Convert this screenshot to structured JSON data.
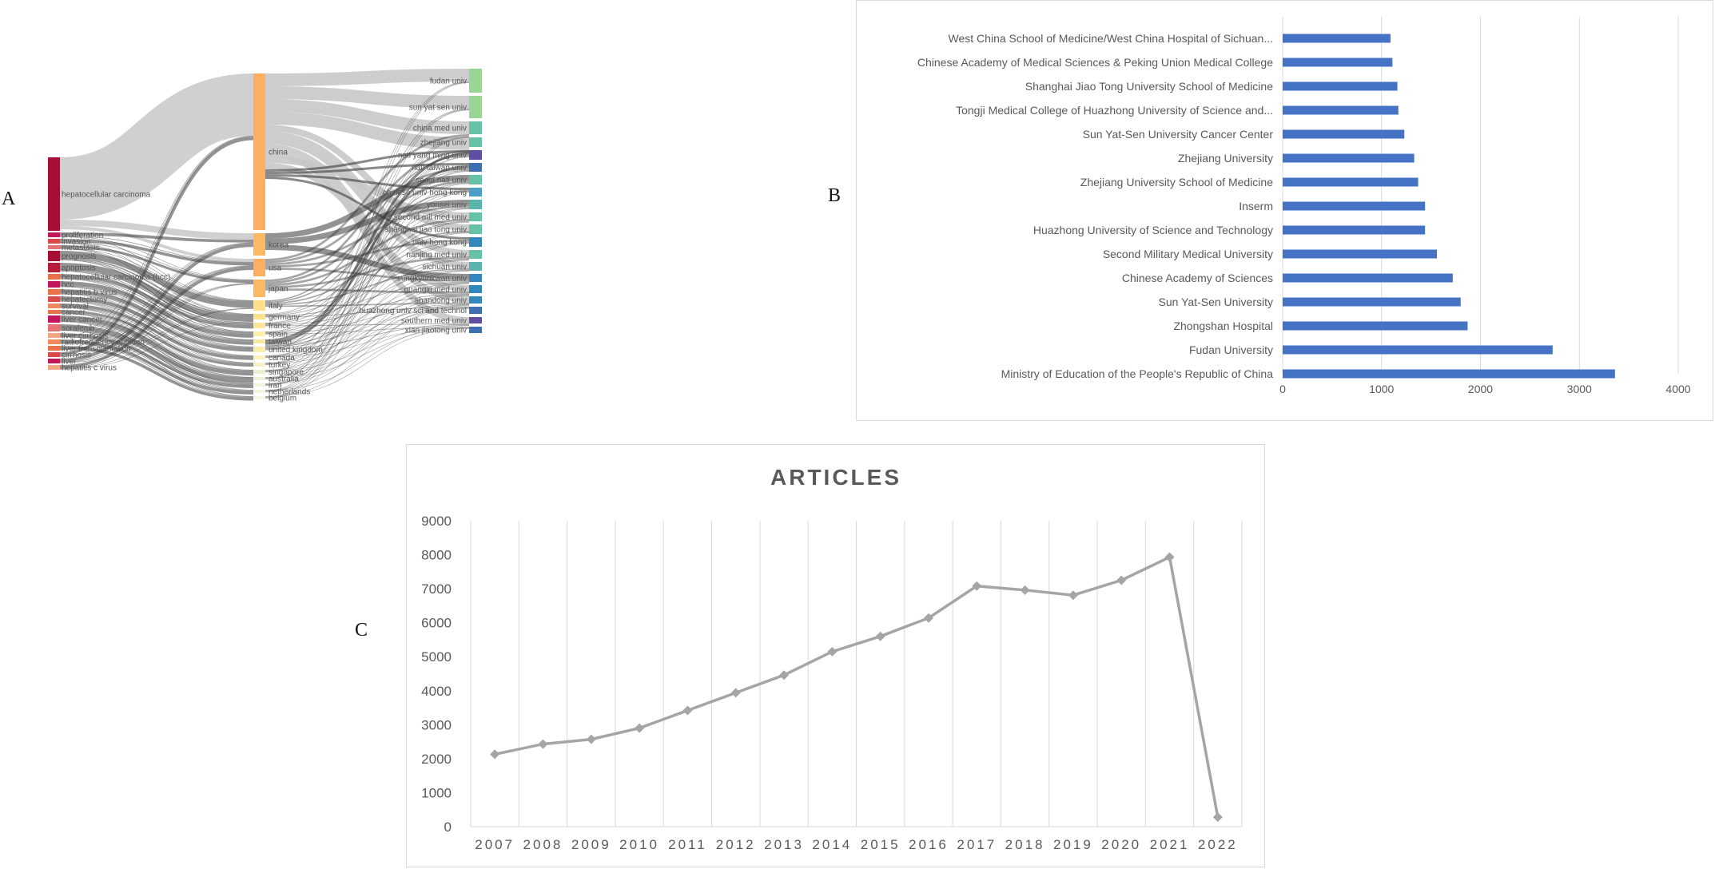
{
  "panel_labels": {
    "a": "A",
    "b": "B",
    "c": "C"
  },
  "colors": {
    "bar": "#4472c4",
    "line": "#a5a5a5",
    "grid": "#d9d9d9",
    "flow": "#c8c8c8",
    "flow_dark": "#3a3a3a",
    "axis_text": "#595959"
  },
  "chart_data": [
    {
      "type": "sankey",
      "columns": [
        "DE",
        "AU_CO",
        "AU_UN"
      ],
      "nodes": {
        "DE": [
          "hepatocellular carcinoma",
          "proliferation",
          "invasion",
          "metastasis",
          "prognosis",
          "apoptosis",
          "hepatocellular carcinoma (hcc)",
          "hcc",
          "hepatitis b virus",
          "hepatectomy",
          "survival",
          "cancer",
          "liver cancer",
          "sorafenib",
          "liver cirrhosis",
          "radiofrequency ablation",
          "liver transplantation",
          "cirrhosis",
          "liver",
          "hepatitis c virus"
        ],
        "AU_CO": [
          "china",
          "korea",
          "usa",
          "japan",
          "italy",
          "germany",
          "france",
          "spain",
          "taiwan",
          "united kingdom",
          "canada",
          "turkey",
          "singapore",
          "australia",
          "iran",
          "netherlands",
          "belgium"
        ],
        "AU_UN": [
          "fudan univ",
          "sun yat sen univ",
          "china med univ",
          "zhejiang univ",
          "natl yang ming univ",
          "natl taiwan univ",
          "seoul natl univ",
          "chinese univ hong kong",
          "yonsei univ",
          "second mil med univ",
          "shanghai jiao tong univ",
          "univ hong kong",
          "nanjing med univ",
          "sichuan univ",
          "sungkyunkwan univ",
          "guangxi med univ",
          "shandong univ",
          "huazhong univ sci and technol",
          "southern med univ",
          "xian jiaotong univ"
        ]
      }
    },
    {
      "type": "bar",
      "orientation": "horizontal",
      "categories": [
        "West China School of Medicine/West China Hospital of Sichuan...",
        "Chinese Academy of Medical Sciences & Peking Union Medical College",
        "Shanghai Jiao Tong University School of Medicine",
        "Tongji Medical College of Huazhong University of Science and...",
        "Sun Yat-Sen University Cancer Center",
        "Zhejiang University",
        "Zhejiang University School of Medicine",
        "Inserm",
        "Huazhong University of Science and Technology",
        "Second Military Medical University",
        "Chinese Academy of Sciences",
        "Sun Yat-Sen University",
        "Zhongshan Hospital",
        "Fudan University",
        "Ministry of Education of the People's Republic of China"
      ],
      "values": [
        1090,
        1110,
        1160,
        1170,
        1230,
        1330,
        1370,
        1440,
        1440,
        1560,
        1720,
        1800,
        1870,
        2730,
        3360
      ],
      "xlim": [
        0,
        4000
      ],
      "xticks": [
        "0",
        "1000",
        "2000",
        "3000",
        "4000"
      ],
      "grid": true
    },
    {
      "type": "line",
      "title": "ARTICLES",
      "x": [
        "2007",
        "2008",
        "2009",
        "2010",
        "2011",
        "2012",
        "2013",
        "2014",
        "2015",
        "2016",
        "2017",
        "2018",
        "2019",
        "2020",
        "2021",
        "2022"
      ],
      "values": [
        2130,
        2430,
        2570,
        2900,
        3420,
        3940,
        4460,
        5150,
        5600,
        6140,
        7080,
        6960,
        6810,
        7250,
        7930,
        280
      ],
      "ylim": [
        0,
        9000
      ],
      "yticks": [
        "0",
        "1000",
        "2000",
        "3000",
        "4000",
        "5000",
        "6000",
        "7000",
        "8000",
        "9000"
      ],
      "grid": true
    }
  ]
}
